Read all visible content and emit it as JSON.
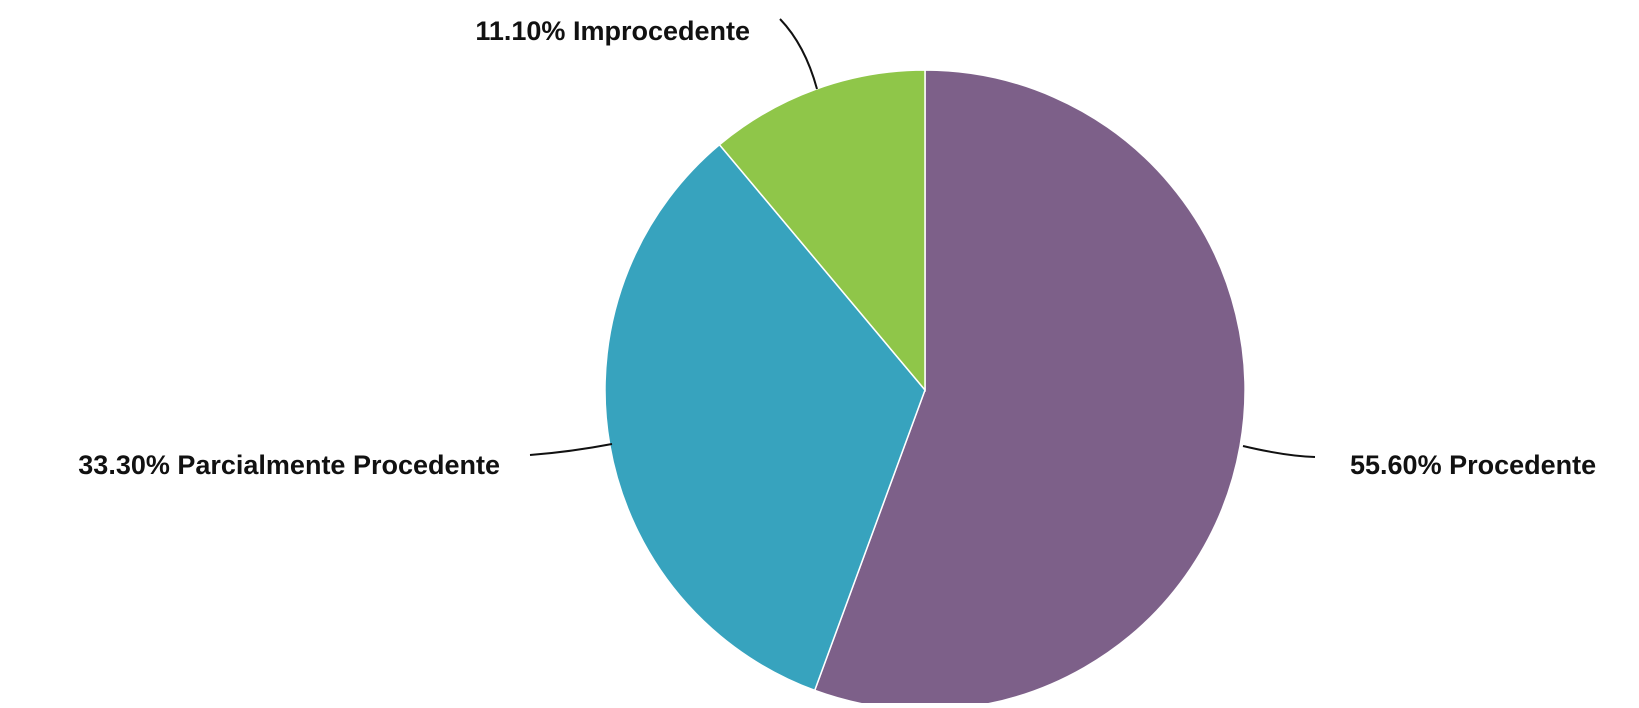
{
  "chart_data": {
    "type": "pie",
    "title": "",
    "slices": [
      {
        "label": "Procedente",
        "value": 55.6,
        "value_label": "55.60%",
        "color": "#7d6089"
      },
      {
        "label": "Parcialmente Procedente",
        "value": 33.3,
        "value_label": "33.30%",
        "color": "#37a3be"
      },
      {
        "label": "Improcedente",
        "value": 11.1,
        "value_label": "11.10%",
        "color": "#8fc649"
      }
    ],
    "start_angle": "12 o'clock",
    "direction": "clockwise",
    "legend": "none",
    "labels": "outside-with-leader-lines"
  }
}
